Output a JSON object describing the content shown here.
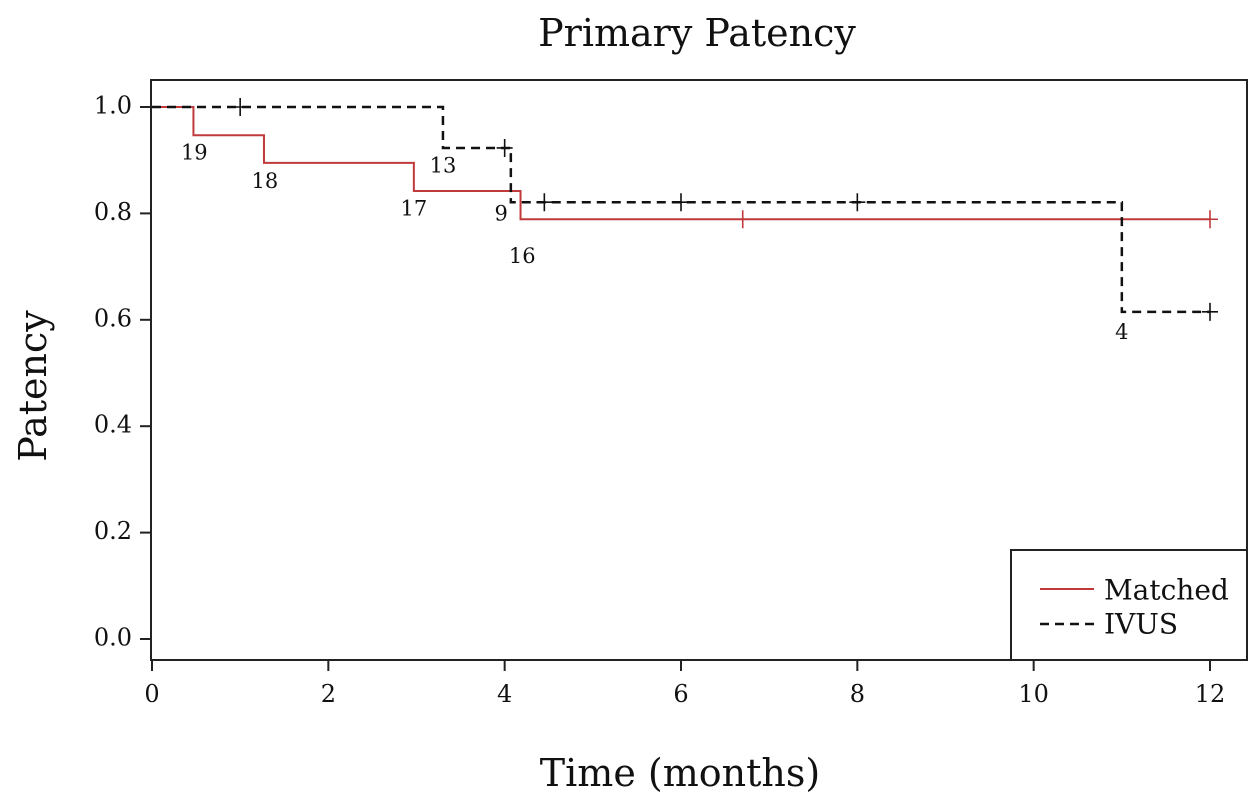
{
  "chart_data": {
    "type": "line",
    "title": "Primary Patency",
    "xlabel": "Time (months)",
    "ylabel": "Patency",
    "xlim": [
      0,
      12
    ],
    "ylim": [
      0.0,
      1.0
    ],
    "xticks": [
      0,
      2,
      4,
      6,
      8,
      10,
      12
    ],
    "yticks": [
      0.0,
      0.2,
      0.4,
      0.6,
      0.8,
      1.0
    ],
    "grid": false,
    "legend_position": "bottom-right",
    "series": [
      {
        "name": "Matched",
        "style": "solid",
        "color": "#c0393b",
        "steps": [
          [
            0,
            1.0
          ],
          [
            0.47,
            0.947
          ],
          [
            1.27,
            0.895
          ],
          [
            2.97,
            0.842
          ],
          [
            4.18,
            0.789
          ],
          [
            12,
            0.789
          ]
        ],
        "censored": [
          [
            6.7,
            0.789
          ],
          [
            12,
            0.789
          ]
        ]
      },
      {
        "name": "IVUS",
        "style": "dashed",
        "color": "#111111",
        "steps": [
          [
            0,
            1.0
          ],
          [
            3.3,
            0.923
          ],
          [
            4.07,
            0.821
          ],
          [
            11.0,
            0.615
          ],
          [
            12,
            0.615
          ]
        ],
        "censored": [
          [
            1.0,
            1.0
          ],
          [
            4.0,
            0.923
          ],
          [
            4.45,
            0.821
          ],
          [
            6.0,
            0.821
          ],
          [
            8.0,
            0.821
          ],
          [
            12,
            0.615
          ]
        ]
      }
    ],
    "annotations": [
      {
        "text": "19",
        "x": 0.48,
        "y": 0.912
      },
      {
        "text": "18",
        "x": 1.28,
        "y": 0.858
      },
      {
        "text": "17",
        "x": 2.97,
        "y": 0.806
      },
      {
        "text": "16",
        "x": 4.2,
        "y": 0.717
      },
      {
        "text": "13",
        "x": 3.3,
        "y": 0.887
      },
      {
        "text": "9",
        "x": 3.96,
        "y": 0.797
      },
      {
        "text": "4",
        "x": 11.0,
        "y": 0.574
      }
    ]
  }
}
